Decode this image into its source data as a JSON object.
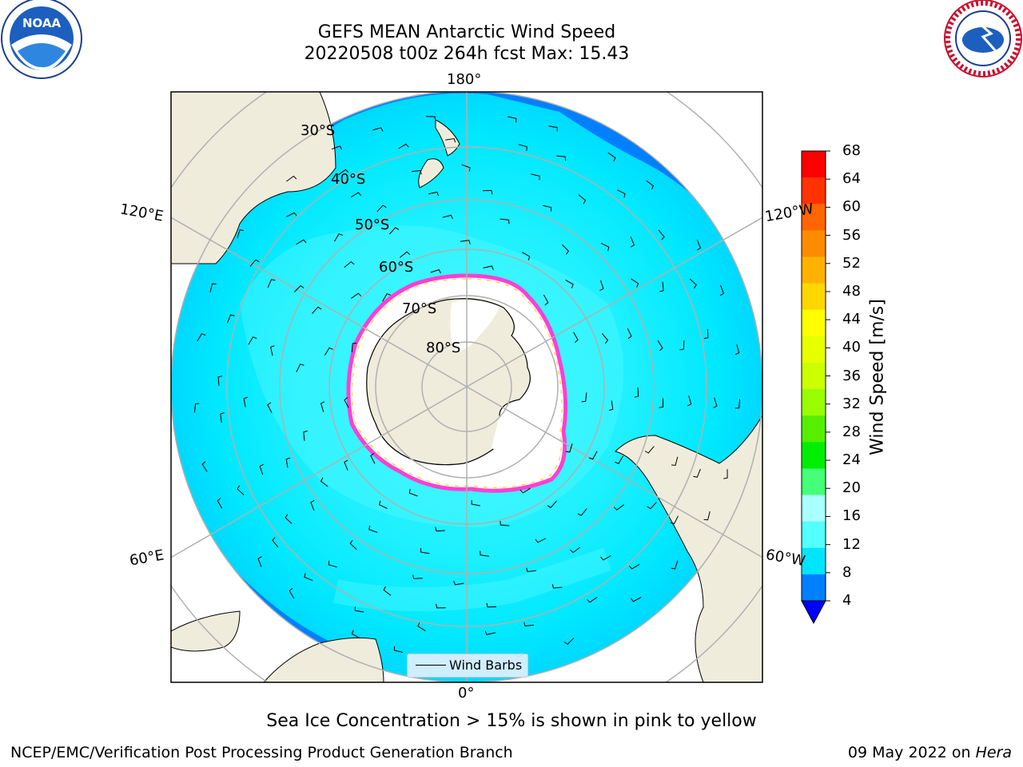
{
  "title": {
    "line1": "GEFS MEAN Antarctic Wind Speed",
    "line2": "20220508 t00z 264h fcst   Max: 15.43"
  },
  "logos": {
    "left": {
      "icon": "noaa-logo",
      "text": "NOAA"
    },
    "right": {
      "icon": "nws-logo",
      "text": "NATIONAL WEATHER SERVICE"
    }
  },
  "map": {
    "longitude_labels": {
      "top": "180°",
      "bottom": "0°",
      "upper_left": "120°E",
      "lower_left": "60°E",
      "upper_right": "120°W",
      "lower_right": "60°W"
    },
    "latitude_labels": [
      "30°S",
      "40°S",
      "50°S",
      "60°S",
      "70°S",
      "80°S"
    ],
    "colors": {
      "land": "#efecdc",
      "sea_ice_low": "#ff3fd4",
      "sea_ice_high": "#ffd54a",
      "grid": "#b0b0b0"
    }
  },
  "legend": {
    "label": "Wind Barbs"
  },
  "colorbar": {
    "title": "Wind Speed [m/s]",
    "ticks": [
      "68",
      "64",
      "60",
      "56",
      "52",
      "48",
      "44",
      "40",
      "36",
      "32",
      "28",
      "24",
      "20",
      "16",
      "12",
      "8",
      "4"
    ],
    "colors": [
      "#ff0000",
      "#ff3300",
      "#ff6600",
      "#ff8c00",
      "#ffb300",
      "#ffd700",
      "#ffff00",
      "#e8ff00",
      "#ccff00",
      "#99ff00",
      "#55ee00",
      "#00ee00",
      "#44ff77",
      "#aaffff",
      "#55ffff",
      "#00e5ff",
      "#0080ff"
    ],
    "under_color": "#0000ff"
  },
  "caption": "Sea Ice Concentration > 15% is shown in pink to yellow",
  "footer": {
    "left": "NCEP/EMC/Verification Post Processing Product Generation Branch",
    "right_date": "09 May 2022 on",
    "right_host": "Hera"
  }
}
